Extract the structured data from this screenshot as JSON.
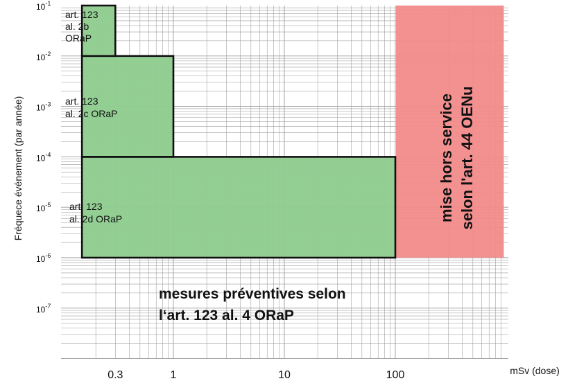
{
  "chart_data": {
    "type": "area",
    "title": "",
    "xlabel": "mSv (dose)",
    "ylabel": "Fréquece événement (par année)",
    "x_scale": "log",
    "y_scale": "log",
    "xlim": [
      0.15,
      950
    ],
    "ylim": [
      1e-08,
      0.1
    ],
    "grid": true,
    "x_ticks": [
      {
        "value": 0.3,
        "label": "0.3"
      },
      {
        "value": 1,
        "label": "1"
      },
      {
        "value": 10,
        "label": "10"
      },
      {
        "value": 100,
        "label": "100"
      }
    ],
    "y_ticks": [
      {
        "value": 0.1,
        "base": "10",
        "exp": "-1"
      },
      {
        "value": 0.01,
        "base": "10",
        "exp": "-2"
      },
      {
        "value": 0.001,
        "base": "10",
        "exp": "-3"
      },
      {
        "value": 0.0001,
        "base": "10",
        "exp": "-4"
      },
      {
        "value": 1e-05,
        "base": "10",
        "exp": "-5"
      },
      {
        "value": 1e-06,
        "base": "10",
        "exp": "-6"
      },
      {
        "value": 1e-07,
        "base": "10",
        "exp": "-7"
      }
    ],
    "regions": [
      {
        "name": "art2b",
        "x": [
          0.15,
          0.3
        ],
        "y": [
          0.01,
          0.1
        ],
        "color": "#8fcc8f",
        "lines": [
          "art. 123",
          "al. 2b",
          "ORaP"
        ]
      },
      {
        "name": "art2c",
        "x": [
          0.15,
          1
        ],
        "y": [
          0.0001,
          0.01
        ],
        "color": "#8fcc8f",
        "lines": [
          "art. 123",
          "al. 2c ORaP"
        ]
      },
      {
        "name": "art2d",
        "x": [
          0.15,
          100
        ],
        "y": [
          1e-06,
          0.0001
        ],
        "color": "#8fcc8f",
        "lines": [
          "art. 123",
          "al. 2d ORaP"
        ]
      },
      {
        "name": "hors-service",
        "x": [
          100,
          950
        ],
        "y": [
          1e-06,
          0.1
        ],
        "color": "#f28b8b",
        "lines": [
          "mise hors service",
          "selon l'art. 44 OENu"
        ]
      }
    ],
    "annotations": [
      {
        "name": "mesures",
        "lines": [
          "mesures préventives selon",
          "l‘art. 123 al. 4 ORaP"
        ]
      }
    ],
    "colors": {
      "allowed": "#8fcc8f",
      "shutdown": "#f28b8b",
      "outline": "#111111",
      "grid": "#9a9a9a"
    }
  }
}
